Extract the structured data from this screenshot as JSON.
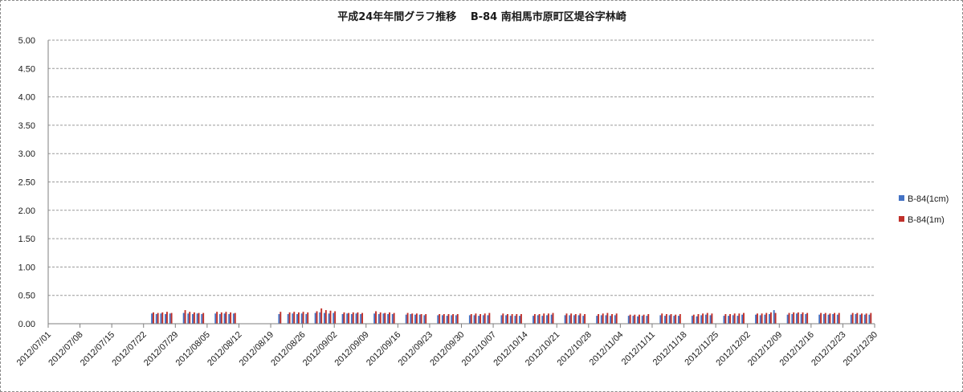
{
  "chart_data": {
    "type": "bar",
    "title": "平成24年年間グラフ推移　 B-84 南相馬市原町区堤谷字林崎",
    "xlabel": "",
    "ylabel": "",
    "ylim": [
      0,
      5
    ],
    "yticks": [
      "0.00",
      "0.50",
      "1.00",
      "1.50",
      "2.00",
      "2.50",
      "3.00",
      "3.50",
      "4.00",
      "4.50",
      "5.00"
    ],
    "x_start": "2012-07-01",
    "x_end": "2012-12-30",
    "x_ticks": [
      "2012/07/01",
      "2012/07/08",
      "2012/07/15",
      "2012/07/22",
      "2012/07/29",
      "2012/08/05",
      "2012/08/12",
      "2012/08/19",
      "2012/08/26",
      "2012/09/02",
      "2012/09/09",
      "2012/09/16",
      "2012/09/23",
      "2012/09/30",
      "2012/10/07",
      "2012/10/14",
      "2012/10/21",
      "2012/10/28",
      "2012/11/04",
      "2012/11/11",
      "2012/11/18",
      "2012/11/25",
      "2012/12/02",
      "2012/12/09",
      "2012/12/16",
      "2012/12/23",
      "2012/12/30"
    ],
    "grid": "horizontal",
    "legend_position": "right",
    "series": [
      {
        "name": "B-84(1cm)",
        "color": "#4472c4",
        "points": [
          [
            "2012/07/24",
            0.18
          ],
          [
            "2012/07/25",
            0.17
          ],
          [
            "2012/07/26",
            0.18
          ],
          [
            "2012/07/27",
            0.17
          ],
          [
            "2012/07/28",
            0.18
          ],
          [
            "2012/07/31",
            0.19
          ],
          [
            "2012/08/01",
            0.18
          ],
          [
            "2012/08/02",
            0.17
          ],
          [
            "2012/08/03",
            0.18
          ],
          [
            "2012/08/04",
            0.17
          ],
          [
            "2012/08/07",
            0.18
          ],
          [
            "2012/08/08",
            0.17
          ],
          [
            "2012/08/09",
            0.18
          ],
          [
            "2012/08/10",
            0.17
          ],
          [
            "2012/08/11",
            0.18
          ],
          [
            "2012/08/21",
            0.17
          ],
          [
            "2012/08/23",
            0.17
          ],
          [
            "2012/08/24",
            0.18
          ],
          [
            "2012/08/25",
            0.17
          ],
          [
            "2012/08/26",
            0.18
          ],
          [
            "2012/08/27",
            0.17
          ],
          [
            "2012/08/29",
            0.19
          ],
          [
            "2012/08/30",
            0.2
          ],
          [
            "2012/08/31",
            0.19
          ],
          [
            "2012/09/01",
            0.18
          ],
          [
            "2012/09/02",
            0.19
          ],
          [
            "2012/09/04",
            0.17
          ],
          [
            "2012/09/05",
            0.18
          ],
          [
            "2012/09/06",
            0.17
          ],
          [
            "2012/09/07",
            0.18
          ],
          [
            "2012/09/08",
            0.17
          ],
          [
            "2012/09/11",
            0.18
          ],
          [
            "2012/09/12",
            0.17
          ],
          [
            "2012/09/13",
            0.18
          ],
          [
            "2012/09/14",
            0.17
          ],
          [
            "2012/09/15",
            0.17
          ],
          [
            "2012/09/18",
            0.16
          ],
          [
            "2012/09/19",
            0.17
          ],
          [
            "2012/09/20",
            0.16
          ],
          [
            "2012/09/21",
            0.16
          ],
          [
            "2012/09/22",
            0.15
          ],
          [
            "2012/09/25",
            0.15
          ],
          [
            "2012/09/26",
            0.15
          ],
          [
            "2012/09/27",
            0.14
          ],
          [
            "2012/09/28",
            0.15
          ],
          [
            "2012/09/29",
            0.15
          ],
          [
            "2012/10/02",
            0.15
          ],
          [
            "2012/10/03",
            0.15
          ],
          [
            "2012/10/04",
            0.14
          ],
          [
            "2012/10/05",
            0.15
          ],
          [
            "2012/10/06",
            0.15
          ],
          [
            "2012/10/09",
            0.15
          ],
          [
            "2012/10/10",
            0.15
          ],
          [
            "2012/10/11",
            0.14
          ],
          [
            "2012/10/12",
            0.14
          ],
          [
            "2012/10/13",
            0.14
          ],
          [
            "2012/10/16",
            0.14
          ],
          [
            "2012/10/17",
            0.15
          ],
          [
            "2012/10/18",
            0.14
          ],
          [
            "2012/10/19",
            0.15
          ],
          [
            "2012/10/20",
            0.16
          ],
          [
            "2012/10/23",
            0.15
          ],
          [
            "2012/10/24",
            0.15
          ],
          [
            "2012/10/25",
            0.15
          ],
          [
            "2012/10/26",
            0.15
          ],
          [
            "2012/10/27",
            0.14
          ],
          [
            "2012/10/30",
            0.14
          ],
          [
            "2012/10/31",
            0.15
          ],
          [
            "2012/11/01",
            0.15
          ],
          [
            "2012/11/02",
            0.14
          ],
          [
            "2012/11/03",
            0.15
          ],
          [
            "2012/11/06",
            0.14
          ],
          [
            "2012/11/07",
            0.14
          ],
          [
            "2012/11/08",
            0.13
          ],
          [
            "2012/11/09",
            0.14
          ],
          [
            "2012/11/10",
            0.14
          ],
          [
            "2012/11/13",
            0.15
          ],
          [
            "2012/11/14",
            0.14
          ],
          [
            "2012/11/15",
            0.15
          ],
          [
            "2012/11/16",
            0.14
          ],
          [
            "2012/11/17",
            0.14
          ],
          [
            "2012/11/20",
            0.14
          ],
          [
            "2012/11/21",
            0.13
          ],
          [
            "2012/11/22",
            0.15
          ],
          [
            "2012/11/23",
            0.16
          ],
          [
            "2012/11/24",
            0.15
          ],
          [
            "2012/11/27",
            0.14
          ],
          [
            "2012/11/28",
            0.14
          ],
          [
            "2012/11/29",
            0.15
          ],
          [
            "2012/11/30",
            0.14
          ],
          [
            "2012/12/01",
            0.16
          ],
          [
            "2012/12/04",
            0.16
          ],
          [
            "2012/12/05",
            0.15
          ],
          [
            "2012/12/06",
            0.16
          ],
          [
            "2012/12/07",
            0.17
          ],
          [
            "2012/12/08",
            0.24
          ],
          [
            "2012/12/11",
            0.16
          ],
          [
            "2012/12/12",
            0.17
          ],
          [
            "2012/12/13",
            0.18
          ],
          [
            "2012/12/14",
            0.17
          ],
          [
            "2012/12/15",
            0.17
          ],
          [
            "2012/12/18",
            0.16
          ],
          [
            "2012/12/19",
            0.17
          ],
          [
            "2012/12/20",
            0.16
          ],
          [
            "2012/12/21",
            0.17
          ],
          [
            "2012/12/22",
            0.16
          ],
          [
            "2012/12/25",
            0.16
          ],
          [
            "2012/12/26",
            0.17
          ],
          [
            "2012/12/27",
            0.16
          ],
          [
            "2012/12/28",
            0.16
          ],
          [
            "2012/12/29",
            0.16
          ]
        ]
      },
      {
        "name": "B-84(1m)",
        "color": "#c0302a",
        "points": [
          [
            "2012/07/24",
            0.2
          ],
          [
            "2012/07/25",
            0.19
          ],
          [
            "2012/07/26",
            0.2
          ],
          [
            "2012/07/27",
            0.21
          ],
          [
            "2012/07/28",
            0.19
          ],
          [
            "2012/07/31",
            0.24
          ],
          [
            "2012/08/01",
            0.21
          ],
          [
            "2012/08/02",
            0.2
          ],
          [
            "2012/08/03",
            0.19
          ],
          [
            "2012/08/04",
            0.19
          ],
          [
            "2012/08/07",
            0.21
          ],
          [
            "2012/08/08",
            0.2
          ],
          [
            "2012/08/09",
            0.21
          ],
          [
            "2012/08/10",
            0.2
          ],
          [
            "2012/08/11",
            0.19
          ],
          [
            "2012/08/21",
            0.21
          ],
          [
            "2012/08/23",
            0.2
          ],
          [
            "2012/08/24",
            0.21
          ],
          [
            "2012/08/25",
            0.2
          ],
          [
            "2012/08/26",
            0.21
          ],
          [
            "2012/08/27",
            0.2
          ],
          [
            "2012/08/29",
            0.22
          ],
          [
            "2012/08/30",
            0.27
          ],
          [
            "2012/08/31",
            0.24
          ],
          [
            "2012/09/01",
            0.23
          ],
          [
            "2012/09/02",
            0.22
          ],
          [
            "2012/09/04",
            0.2
          ],
          [
            "2012/09/05",
            0.19
          ],
          [
            "2012/09/06",
            0.2
          ],
          [
            "2012/09/07",
            0.2
          ],
          [
            "2012/09/08",
            0.19
          ],
          [
            "2012/09/11",
            0.22
          ],
          [
            "2012/09/12",
            0.2
          ],
          [
            "2012/09/13",
            0.19
          ],
          [
            "2012/09/14",
            0.2
          ],
          [
            "2012/09/15",
            0.19
          ],
          [
            "2012/09/18",
            0.19
          ],
          [
            "2012/09/19",
            0.18
          ],
          [
            "2012/09/20",
            0.18
          ],
          [
            "2012/09/21",
            0.17
          ],
          [
            "2012/09/22",
            0.17
          ],
          [
            "2012/09/25",
            0.17
          ],
          [
            "2012/09/26",
            0.17
          ],
          [
            "2012/09/27",
            0.17
          ],
          [
            "2012/09/28",
            0.17
          ],
          [
            "2012/09/29",
            0.17
          ],
          [
            "2012/10/02",
            0.17
          ],
          [
            "2012/10/03",
            0.18
          ],
          [
            "2012/10/04",
            0.17
          ],
          [
            "2012/10/05",
            0.18
          ],
          [
            "2012/10/06",
            0.19
          ],
          [
            "2012/10/09",
            0.18
          ],
          [
            "2012/10/10",
            0.17
          ],
          [
            "2012/10/11",
            0.17
          ],
          [
            "2012/10/12",
            0.17
          ],
          [
            "2012/10/13",
            0.17
          ],
          [
            "2012/10/16",
            0.17
          ],
          [
            "2012/10/17",
            0.17
          ],
          [
            "2012/10/18",
            0.18
          ],
          [
            "2012/10/19",
            0.18
          ],
          [
            "2012/10/20",
            0.19
          ],
          [
            "2012/10/23",
            0.18
          ],
          [
            "2012/10/24",
            0.18
          ],
          [
            "2012/10/25",
            0.17
          ],
          [
            "2012/10/26",
            0.18
          ],
          [
            "2012/10/27",
            0.17
          ],
          [
            "2012/10/30",
            0.17
          ],
          [
            "2012/10/31",
            0.18
          ],
          [
            "2012/11/01",
            0.19
          ],
          [
            "2012/11/02",
            0.17
          ],
          [
            "2012/11/03",
            0.18
          ],
          [
            "2012/11/06",
            0.16
          ],
          [
            "2012/11/07",
            0.16
          ],
          [
            "2012/11/08",
            0.16
          ],
          [
            "2012/11/09",
            0.16
          ],
          [
            "2012/11/10",
            0.17
          ],
          [
            "2012/11/13",
            0.18
          ],
          [
            "2012/11/14",
            0.17
          ],
          [
            "2012/11/15",
            0.17
          ],
          [
            "2012/11/16",
            0.16
          ],
          [
            "2012/11/17",
            0.17
          ],
          [
            "2012/11/20",
            0.16
          ],
          [
            "2012/11/21",
            0.17
          ],
          [
            "2012/11/22",
            0.18
          ],
          [
            "2012/11/23",
            0.19
          ],
          [
            "2012/11/24",
            0.18
          ],
          [
            "2012/11/27",
            0.17
          ],
          [
            "2012/11/28",
            0.17
          ],
          [
            "2012/11/29",
            0.18
          ],
          [
            "2012/11/30",
            0.18
          ],
          [
            "2012/12/01",
            0.19
          ],
          [
            "2012/12/04",
            0.18
          ],
          [
            "2012/12/05",
            0.18
          ],
          [
            "2012/12/06",
            0.19
          ],
          [
            "2012/12/07",
            0.2
          ],
          [
            "2012/12/08",
            0.19
          ],
          [
            "2012/12/11",
            0.19
          ],
          [
            "2012/12/12",
            0.2
          ],
          [
            "2012/12/13",
            0.2
          ],
          [
            "2012/12/14",
            0.2
          ],
          [
            "2012/12/15",
            0.19
          ],
          [
            "2012/12/18",
            0.19
          ],
          [
            "2012/12/19",
            0.19
          ],
          [
            "2012/12/20",
            0.18
          ],
          [
            "2012/12/21",
            0.19
          ],
          [
            "2012/12/22",
            0.19
          ],
          [
            "2012/12/25",
            0.19
          ],
          [
            "2012/12/26",
            0.19
          ],
          [
            "2012/12/27",
            0.18
          ],
          [
            "2012/12/28",
            0.18
          ],
          [
            "2012/12/29",
            0.19
          ]
        ]
      }
    ]
  }
}
